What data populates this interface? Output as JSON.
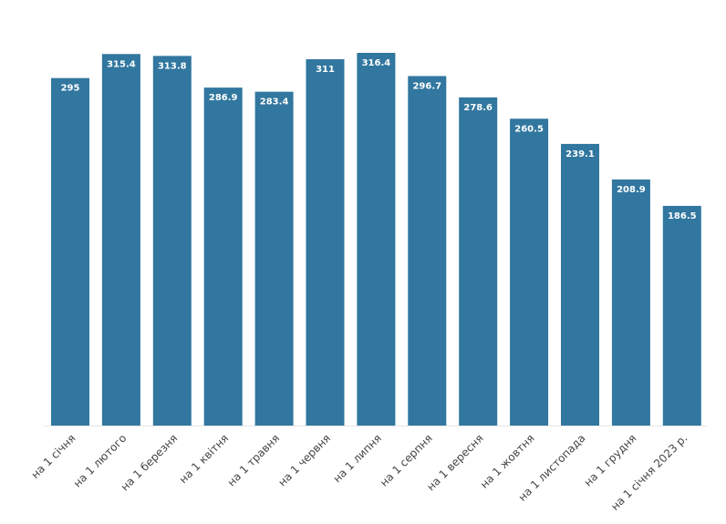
{
  "chart_data": {
    "type": "bar",
    "categories": [
      "на 1 січня",
      "на 1 лютого",
      "на 1 березня",
      "на 1 квітня",
      "на 1 травня",
      "на 1 червня",
      "на 1 липня",
      "на 1 серпня",
      "на 1 вересня",
      "на 1 жовтня",
      "на 1 листопада",
      "на 1 грудня",
      "на 1 січня 2023 р."
    ],
    "values": [
      295,
      315.4,
      313.8,
      286.9,
      283.4,
      311,
      316.4,
      296.7,
      278.6,
      260.5,
      239.1,
      208.9,
      186.5
    ],
    "color": "#31779f"
  }
}
